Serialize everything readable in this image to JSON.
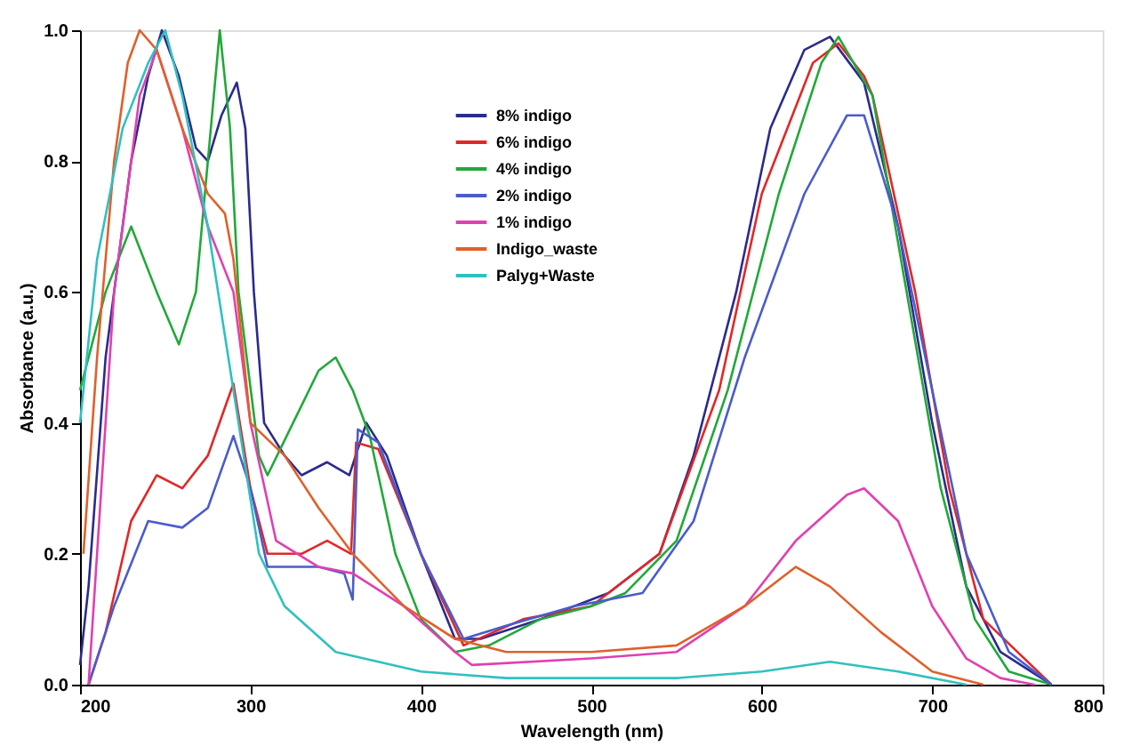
{
  "chart_data": {
    "type": "line",
    "xlabel": "Wavelength (nm)",
    "ylabel": "Absorbance (a.u.)",
    "xlim": [
      200,
      800
    ],
    "xticks": [
      200,
      300,
      400,
      500,
      600,
      700,
      800
    ],
    "ylim": [
      0,
      1.0
    ],
    "yticks": [
      {
        "value": 0,
        "label": "0.0"
      },
      0.2,
      0.4,
      0.6,
      0.8,
      {
        "value": 1,
        "label": "1.0"
      }
    ],
    "grid": false,
    "legend": "top",
    "marker": "none",
    "line_style": "solid",
    "series": [
      {
        "name": "8% indigo",
        "color": "#2b2b8c",
        "x": [
          200,
          205,
          215,
          230,
          240,
          248,
          258,
          268,
          275,
          283,
          292,
          297,
          302,
          308,
          320,
          330,
          345,
          358,
          368,
          380,
          400,
          420,
          435,
          470,
          510,
          540,
          560,
          585,
          605,
          625,
          640,
          660,
          680,
          700,
          720,
          740,
          770
        ],
        "values": [
          0.03,
          0.15,
          0.5,
          0.8,
          0.93,
          1.0,
          0.93,
          0.82,
          0.8,
          0.87,
          0.92,
          0.85,
          0.6,
          0.4,
          0.35,
          0.32,
          0.34,
          0.32,
          0.4,
          0.35,
          0.2,
          0.07,
          0.07,
          0.1,
          0.14,
          0.2,
          0.35,
          0.6,
          0.85,
          0.97,
          0.99,
          0.92,
          0.7,
          0.4,
          0.15,
          0.05,
          0.0
        ]
      },
      {
        "name": "6% indigo",
        "color": "#e02828",
        "x": [
          205,
          215,
          230,
          245,
          260,
          275,
          290,
          300,
          310,
          330,
          345,
          359,
          362,
          375,
          400,
          425,
          460,
          500,
          540,
          575,
          600,
          630,
          645,
          660,
          665,
          690,
          710,
          730,
          770
        ],
        "values": [
          0.0,
          0.08,
          0.25,
          0.32,
          0.3,
          0.35,
          0.46,
          0.3,
          0.2,
          0.2,
          0.22,
          0.2,
          0.37,
          0.36,
          0.2,
          0.06,
          0.1,
          0.12,
          0.2,
          0.45,
          0.75,
          0.95,
          0.98,
          0.93,
          0.9,
          0.6,
          0.3,
          0.1,
          0.0
        ]
      },
      {
        "name": "4% indigo",
        "color": "#22a83a",
        "x": [
          200,
          205,
          215,
          230,
          245,
          258,
          268,
          275,
          282,
          288,
          293,
          305,
          310,
          325,
          340,
          350,
          360,
          370,
          385,
          400,
          420,
          440,
          470,
          500,
          520,
          550,
          580,
          610,
          635,
          645,
          665,
          685,
          705,
          725,
          745,
          770
        ],
        "values": [
          0.45,
          0.5,
          0.6,
          0.7,
          0.6,
          0.52,
          0.6,
          0.8,
          1.0,
          0.85,
          0.6,
          0.35,
          0.32,
          0.4,
          0.48,
          0.5,
          0.45,
          0.38,
          0.2,
          0.1,
          0.05,
          0.06,
          0.1,
          0.12,
          0.14,
          0.22,
          0.45,
          0.75,
          0.95,
          0.99,
          0.9,
          0.6,
          0.3,
          0.1,
          0.02,
          0.0
        ]
      },
      {
        "name": "2% indigo",
        "color": "#4a5ccc",
        "x": [
          205,
          220,
          240,
          260,
          275,
          290,
          300,
          310,
          340,
          355,
          360,
          363,
          375,
          400,
          425,
          450,
          490,
          530,
          560,
          590,
          625,
          650,
          660,
          680,
          700,
          720,
          745,
          770
        ],
        "values": [
          0.0,
          0.12,
          0.25,
          0.24,
          0.27,
          0.38,
          0.3,
          0.18,
          0.18,
          0.17,
          0.13,
          0.39,
          0.37,
          0.2,
          0.07,
          0.09,
          0.12,
          0.14,
          0.25,
          0.5,
          0.75,
          0.87,
          0.87,
          0.7,
          0.45,
          0.2,
          0.05,
          0.0
        ]
      },
      {
        "name": "1% indigo",
        "color": "#e040b0",
        "x": [
          205,
          220,
          235,
          245,
          260,
          275,
          290,
          300,
          315,
          340,
          360,
          390,
          420,
          430,
          500,
          550,
          590,
          620,
          650,
          660,
          680,
          700,
          720,
          740,
          760
        ],
        "values": [
          0.0,
          0.6,
          0.9,
          0.97,
          0.85,
          0.7,
          0.6,
          0.4,
          0.22,
          0.18,
          0.17,
          0.12,
          0.05,
          0.03,
          0.04,
          0.05,
          0.12,
          0.22,
          0.29,
          0.3,
          0.25,
          0.12,
          0.04,
          0.01,
          0.0
        ]
      },
      {
        "name": "Indigo_waste",
        "color": "#e0602a",
        "x": [
          202,
          210,
          220,
          228,
          235,
          245,
          260,
          275,
          285,
          290,
          300,
          320,
          340,
          360,
          390,
          420,
          450,
          500,
          550,
          590,
          620,
          640,
          670,
          700,
          730
        ],
        "values": [
          0.2,
          0.5,
          0.8,
          0.95,
          1.0,
          0.97,
          0.85,
          0.75,
          0.72,
          0.65,
          0.4,
          0.35,
          0.27,
          0.2,
          0.12,
          0.07,
          0.05,
          0.05,
          0.06,
          0.12,
          0.18,
          0.15,
          0.08,
          0.02,
          0.0
        ]
      },
      {
        "name": "Palyg+Waste",
        "color": "#30c0c0",
        "x": [
          200,
          210,
          225,
          240,
          250,
          260,
          275,
          290,
          305,
          320,
          350,
          400,
          450,
          550,
          600,
          640,
          680,
          720
        ],
        "values": [
          0.4,
          0.65,
          0.85,
          0.95,
          1.0,
          0.9,
          0.7,
          0.45,
          0.2,
          0.12,
          0.05,
          0.02,
          0.01,
          0.01,
          0.02,
          0.035,
          0.02,
          0.0
        ]
      }
    ]
  }
}
